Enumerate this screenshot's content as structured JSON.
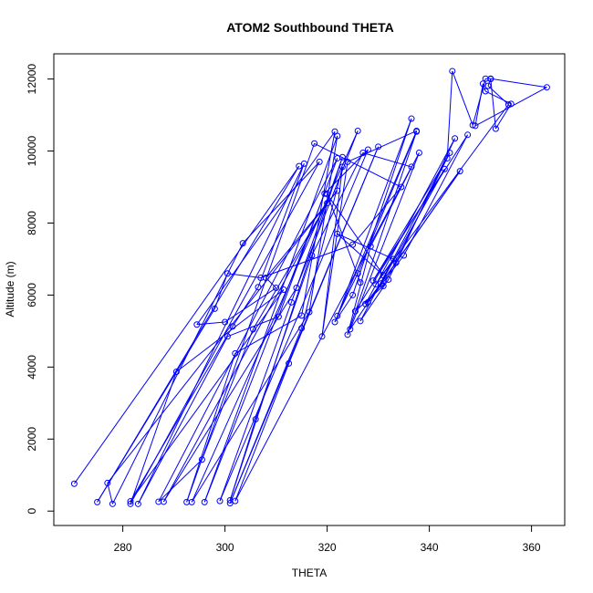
{
  "chart_data": {
    "type": "line",
    "title": "ATOM2 Southbound THETA",
    "xlabel": "THETA",
    "ylabel": "Altitude (m)",
    "xlim": [
      266.5,
      366.5
    ],
    "ylim": [
      -400,
      12700
    ],
    "x_ticks": [
      280,
      300,
      320,
      340,
      360
    ],
    "y_ticks": [
      0,
      2000,
      4000,
      6000,
      8000,
      10000,
      12000
    ],
    "grid": false,
    "legend": "none",
    "series_color": "#0000ff",
    "marker": "open-circle",
    "points": [
      [
        270.5,
        760
      ],
      [
        314.5,
        9580
      ],
      [
        275,
        250
      ],
      [
        298,
        5620
      ],
      [
        300.5,
        6600
      ],
      [
        307,
        6480
      ],
      [
        325,
        7400
      ],
      [
        334.5,
        9000
      ],
      [
        317.5,
        10210
      ],
      [
        292.5,
        250
      ],
      [
        302,
        4380
      ],
      [
        315,
        5430
      ],
      [
        321.5,
        10540
      ],
      [
        294.5,
        5180
      ],
      [
        300,
        5250
      ],
      [
        310,
        6200
      ],
      [
        308,
        6480
      ],
      [
        322,
        8900
      ],
      [
        277,
        780
      ],
      [
        278,
        200
      ],
      [
        303.5,
        7440
      ],
      [
        318.5,
        9700
      ],
      [
        281.5,
        200
      ],
      [
        290.5,
        3870
      ],
      [
        311.5,
        6150
      ],
      [
        281.5,
        270
      ],
      [
        301.5,
        5130
      ],
      [
        306.5,
        6220
      ],
      [
        315.5,
        9650
      ],
      [
        283,
        200
      ],
      [
        300.5,
        4850
      ],
      [
        310.5,
        5400
      ],
      [
        322,
        9800
      ],
      [
        287,
        260
      ],
      [
        295.5,
        1430
      ],
      [
        305.5,
        5050
      ],
      [
        320,
        8550
      ],
      [
        288,
        260
      ],
      [
        314,
        6200
      ],
      [
        326,
        10560
      ],
      [
        293.5,
        250
      ],
      [
        316.5,
        5530
      ],
      [
        322,
        10420
      ],
      [
        296,
        250
      ],
      [
        319.5,
        8820
      ],
      [
        328,
        10040
      ],
      [
        299,
        280
      ],
      [
        313,
        5800
      ],
      [
        323,
        9830
      ],
      [
        301,
        300
      ],
      [
        306,
        2550
      ],
      [
        317,
        7100
      ],
      [
        327,
        9950
      ],
      [
        336.5,
        9560
      ],
      [
        302,
        280
      ],
      [
        312.5,
        4100
      ],
      [
        330,
        10120
      ],
      [
        301,
        220
      ],
      [
        315,
        5080
      ],
      [
        323,
        9560
      ],
      [
        319,
        4850
      ],
      [
        324,
        9700
      ],
      [
        337.5,
        10560
      ],
      [
        321.5,
        5250
      ],
      [
        325,
        6000
      ],
      [
        336.5,
        10900
      ],
      [
        322,
        5420
      ],
      [
        326,
        6600
      ],
      [
        337.5,
        10540
      ],
      [
        324,
        4900
      ],
      [
        328.5,
        7350
      ],
      [
        338,
        9950
      ],
      [
        324.5,
        5050
      ],
      [
        330.5,
        6320
      ],
      [
        343,
        9500
      ],
      [
        325.5,
        5550
      ],
      [
        331,
        6250
      ],
      [
        344,
        9950
      ],
      [
        326.5,
        5280
      ],
      [
        332,
        6430
      ],
      [
        345,
        10350
      ],
      [
        327.5,
        5750
      ],
      [
        333.5,
        6900
      ],
      [
        346,
        9440
      ],
      [
        328,
        5800
      ],
      [
        335,
        7100
      ],
      [
        347.5,
        10450
      ],
      [
        329,
        6400
      ],
      [
        343.5,
        9800
      ],
      [
        344.5,
        12220
      ],
      [
        348.5,
        10720
      ],
      [
        351,
        12010
      ],
      [
        352,
        12010
      ],
      [
        363,
        11770
      ],
      [
        349,
        10700
      ],
      [
        350.5,
        11870
      ],
      [
        351,
        11660
      ],
      [
        356,
        11310
      ],
      [
        353,
        10620
      ],
      [
        352,
        12000
      ],
      [
        351.5,
        11810
      ],
      [
        355.5,
        11290
      ],
      [
        329.5,
        6300
      ],
      [
        333,
        7000
      ],
      [
        322,
        7700
      ],
      [
        331,
        6550
      ],
      [
        320,
        8800
      ],
      [
        326.5,
        6350
      ]
    ]
  }
}
